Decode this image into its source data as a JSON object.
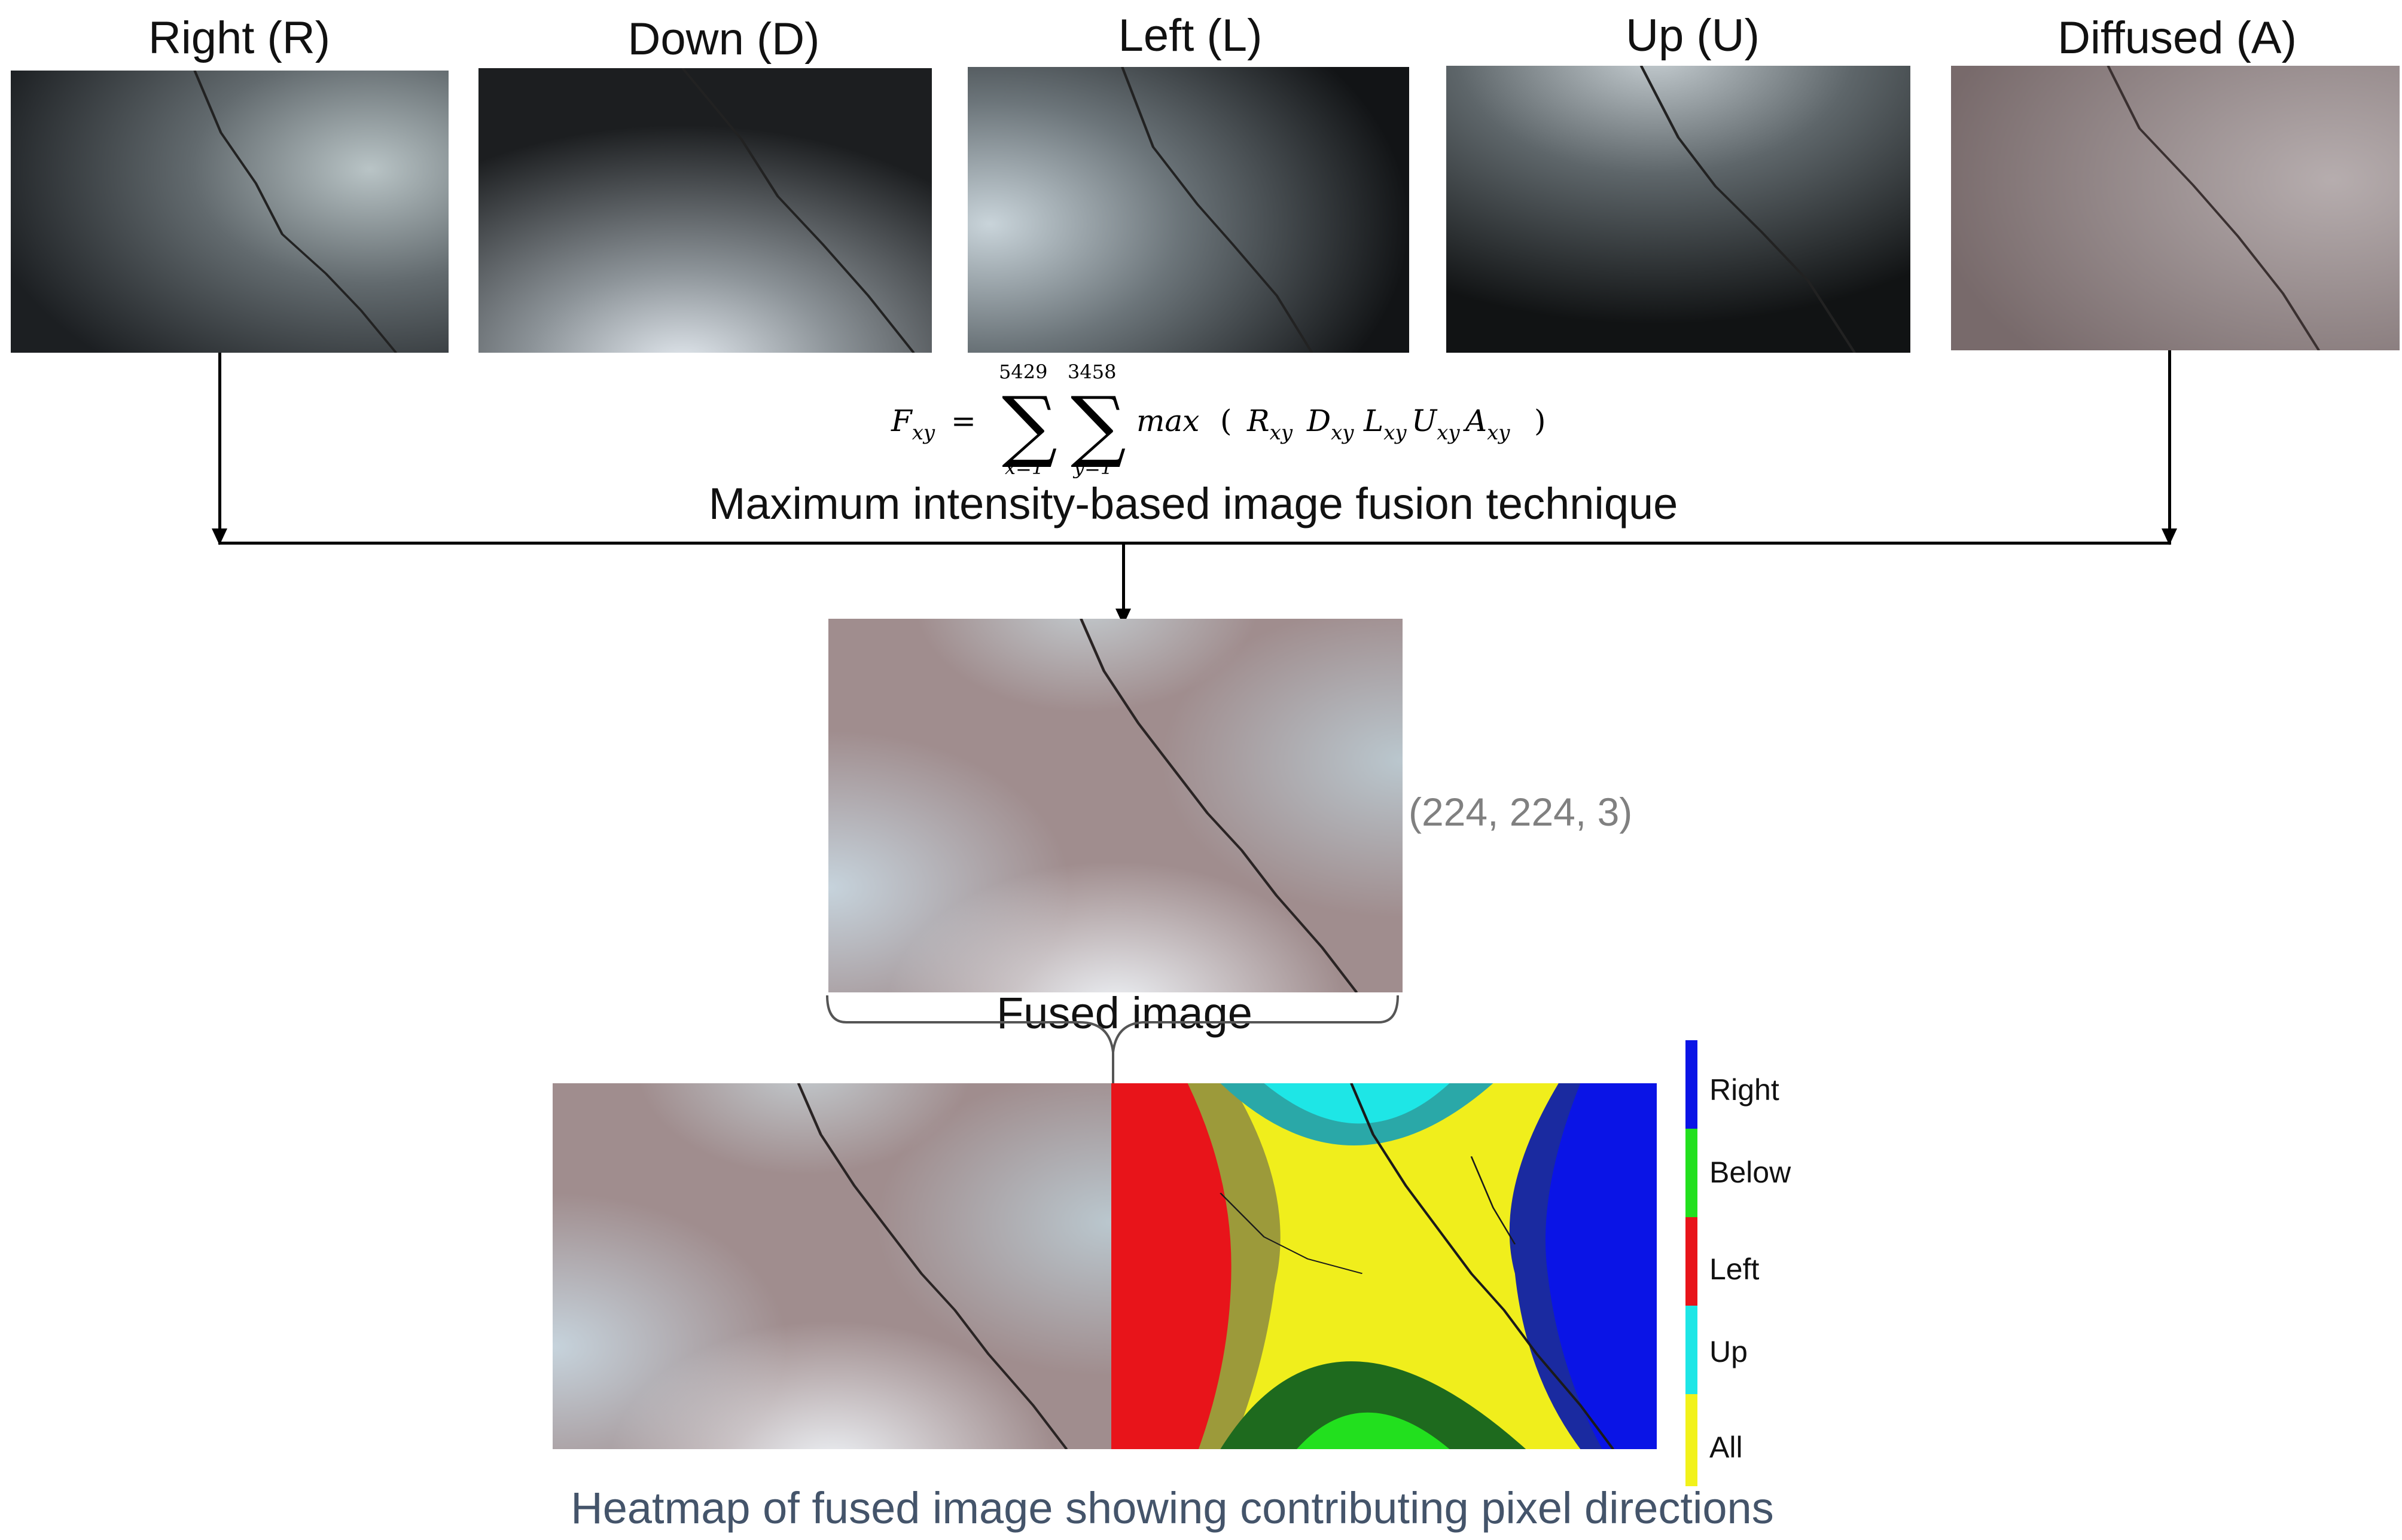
{
  "inputs": {
    "right_label": "Right (R)",
    "down_label": "Down (D)",
    "left_label": "Left (L)",
    "up_label": "Up (U)",
    "diffused_label": "Diffused (A)"
  },
  "formula": {
    "lhs": "F",
    "lhs_sub": "xy",
    "equals": "=",
    "sum1_upper": "5429",
    "sum1_lower": "x=1",
    "sum2_upper": "3458",
    "sum2_lower": "y=1",
    "func": "max",
    "open": "(",
    "terms": [
      {
        "sym": "R",
        "sub": "xy"
      },
      {
        "sym": "D",
        "sub": "xy"
      },
      {
        "sym": "L",
        "sub": "xy"
      },
      {
        "sym": "U",
        "sub": "xy"
      },
      {
        "sym": "A",
        "sub": "xy"
      }
    ],
    "close": ")"
  },
  "fusion_caption": "Maximum intensity-based image fusion technique",
  "shape_label": "(224, 224, 3)",
  "fused_caption": "Fused image",
  "legend": {
    "items": [
      {
        "label": "Right",
        "color": "#0a14e6"
      },
      {
        "label": "Below",
        "color": "#22e01e"
      },
      {
        "label": "Left",
        "color": "#e8141a"
      },
      {
        "label": "Up",
        "color": "#1ee6e6"
      },
      {
        "label": "All",
        "color": "#f2f21a"
      }
    ]
  },
  "heatmap_caption": "Heatmap of fused image showing contributing pixel directions"
}
